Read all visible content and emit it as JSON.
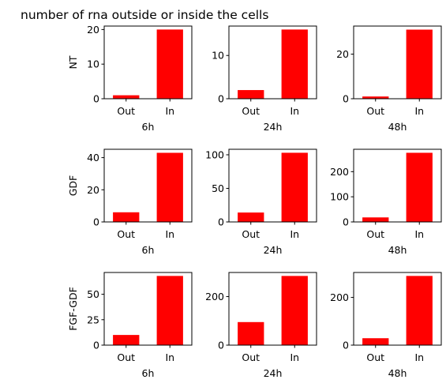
{
  "title": "number of rna outside or inside the cells",
  "bar_color": "#ff0000",
  "chart_data": [
    {
      "type": "bar",
      "row_label": "NT",
      "xlabel": "6h",
      "categories": [
        "Out",
        "In"
      ],
      "values": [
        1,
        20
      ],
      "ylim": [
        0,
        21
      ],
      "yticks": [
        0,
        10,
        20
      ]
    },
    {
      "type": "bar",
      "row_label": "",
      "xlabel": "24h",
      "categories": [
        "Out",
        "In"
      ],
      "values": [
        2,
        16
      ],
      "ylim": [
        0,
        16.8
      ],
      "yticks": [
        0,
        10
      ]
    },
    {
      "type": "bar",
      "row_label": "",
      "xlabel": "48h",
      "categories": [
        "Out",
        "In"
      ],
      "values": [
        1,
        31
      ],
      "ylim": [
        0,
        32.6
      ],
      "yticks": [
        0,
        20
      ]
    },
    {
      "type": "bar",
      "row_label": "GDF",
      "xlabel": "6h",
      "categories": [
        "Out",
        "In"
      ],
      "values": [
        6,
        43
      ],
      "ylim": [
        0,
        45.2
      ],
      "yticks": [
        0,
        20,
        40
      ]
    },
    {
      "type": "bar",
      "row_label": "",
      "xlabel": "24h",
      "categories": [
        "Out",
        "In"
      ],
      "values": [
        14,
        103
      ],
      "ylim": [
        0,
        108.2
      ],
      "yticks": [
        0,
        50,
        100
      ]
    },
    {
      "type": "bar",
      "row_label": "",
      "xlabel": "48h",
      "categories": [
        "Out",
        "In"
      ],
      "values": [
        18,
        275
      ],
      "ylim": [
        0,
        289
      ],
      "yticks": [
        0,
        100,
        200
      ]
    },
    {
      "type": "bar",
      "row_label": "FGF-GDF",
      "xlabel": "6h",
      "categories": [
        "Out",
        "In"
      ],
      "values": [
        10,
        68
      ],
      "ylim": [
        0,
        71.4
      ],
      "yticks": [
        0,
        25,
        50
      ]
    },
    {
      "type": "bar",
      "row_label": "",
      "xlabel": "24h",
      "categories": [
        "Out",
        "In"
      ],
      "values": [
        95,
        285
      ],
      "ylim": [
        0,
        299.3
      ],
      "yticks": [
        0,
        200
      ]
    },
    {
      "type": "bar",
      "row_label": "",
      "xlabel": "48h",
      "categories": [
        "Out",
        "In"
      ],
      "values": [
        29,
        290
      ],
      "ylim": [
        0,
        304.5
      ],
      "yticks": [
        0,
        200
      ]
    }
  ]
}
